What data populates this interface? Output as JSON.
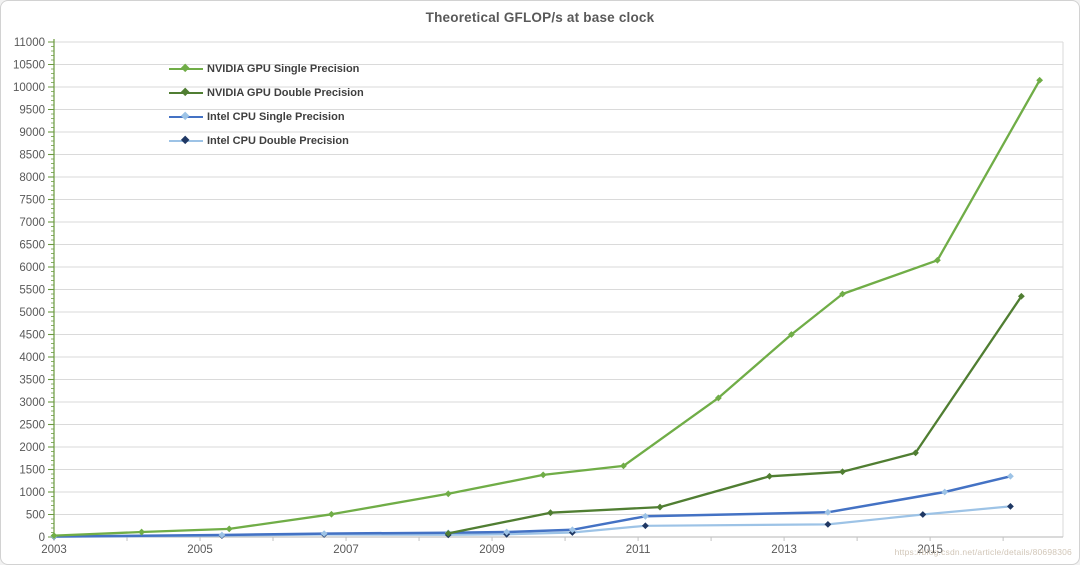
{
  "title": "Theoretical GFLOP/s at base clock",
  "watermark_text": "https://blog.csdn.net/article/details/80698306",
  "colors": {
    "axis_green": "#6a9a3e",
    "axis_gray": "#c3c3c3",
    "gridline": "#dadada",
    "tick_label": "#595959",
    "title_text": "#595959",
    "legend_text": "#3f3f3f"
  },
  "chart_data": {
    "type": "line",
    "title": "Theoretical GFLOP/s at base clock",
    "xlabel": "",
    "ylabel": "",
    "ylim": [
      0,
      11000
    ],
    "y_tick_step": 500,
    "y_minor_step": 100,
    "y_tick_labels": [
      "0",
      "500",
      "1000",
      "1500",
      "2000",
      "2500",
      "3000",
      "3500",
      "4000",
      "4500",
      "5000",
      "5500",
      "6000",
      "6500",
      "7000",
      "7500",
      "8000",
      "8500",
      "9000",
      "9500",
      "10000",
      "10500",
      "11000"
    ],
    "xlim": [
      2003,
      2016.82
    ],
    "x_tick_years": [
      2003,
      2005,
      2007,
      2009,
      2011,
      2013,
      2015
    ],
    "x_minor_years": [
      2003,
      2004,
      2005,
      2006,
      2007,
      2008,
      2009,
      2010,
      2011,
      2012,
      2013,
      2014,
      2015,
      2016
    ],
    "grid": true,
    "legend_position": "top-left-inside",
    "series": [
      {
        "name": "NVIDIA GPU Single Precision",
        "color": "#70ad47",
        "marker_color": "#70ad47",
        "line_width": 2.3,
        "points": [
          [
            2003.0,
            30
          ],
          [
            2004.2,
            110
          ],
          [
            2005.4,
            180
          ],
          [
            2006.8,
            505
          ],
          [
            2008.4,
            960
          ],
          [
            2009.7,
            1380
          ],
          [
            2010.8,
            1580
          ],
          [
            2012.1,
            3090
          ],
          [
            2013.1,
            4500
          ],
          [
            2013.8,
            5400
          ],
          [
            2015.1,
            6150
          ],
          [
            2016.5,
            10150
          ]
        ]
      },
      {
        "name": "NVIDIA GPU Double Precision",
        "color": "#507e32",
        "marker_color": "#507e32",
        "line_width": 2.3,
        "points": [
          [
            2008.4,
            80
          ],
          [
            2009.8,
            540
          ],
          [
            2011.3,
            665
          ],
          [
            2012.8,
            1350
          ],
          [
            2013.8,
            1450
          ],
          [
            2014.8,
            1870
          ],
          [
            2016.25,
            5350
          ]
        ]
      },
      {
        "name": "Intel CPU Single Precision",
        "color": "#4472c4",
        "marker_color": "#9dc3e6",
        "line_width": 2.5,
        "points": [
          [
            2003.0,
            12
          ],
          [
            2005.3,
            45
          ],
          [
            2006.7,
            75
          ],
          [
            2008.4,
            95
          ],
          [
            2009.2,
            110
          ],
          [
            2010.1,
            160
          ],
          [
            2011.1,
            460
          ],
          [
            2013.6,
            550
          ],
          [
            2015.2,
            1000
          ],
          [
            2016.1,
            1350
          ]
        ]
      },
      {
        "name": "Intel CPU Double Precision",
        "color": "#9dc3e6",
        "marker_color": "#1f3864",
        "line_width": 2.2,
        "points": [
          [
            2003.0,
            6
          ],
          [
            2005.3,
            30
          ],
          [
            2006.7,
            55
          ],
          [
            2008.4,
            48
          ],
          [
            2009.2,
            60
          ],
          [
            2010.1,
            100
          ],
          [
            2011.1,
            250
          ],
          [
            2013.6,
            280
          ],
          [
            2014.9,
            500
          ],
          [
            2016.1,
            680
          ]
        ]
      }
    ]
  }
}
